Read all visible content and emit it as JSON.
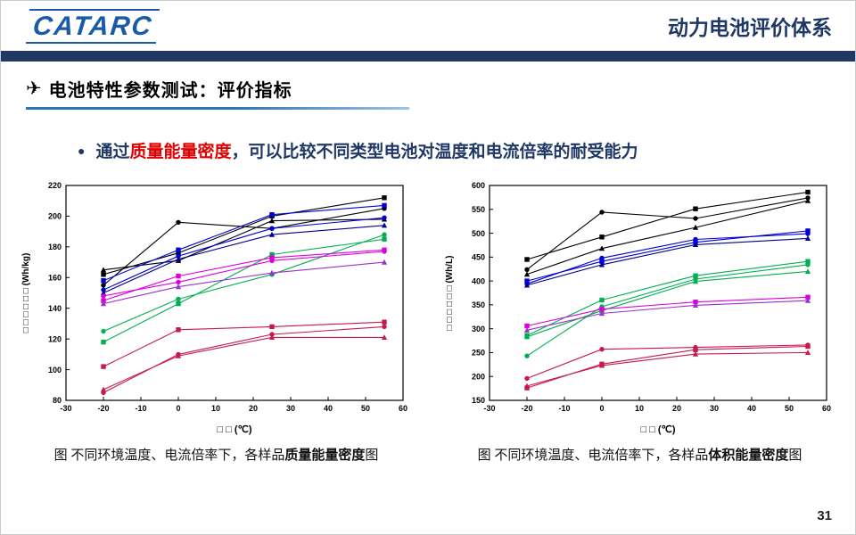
{
  "header": {
    "logo_text": "CATARC",
    "title": "动力电池评价体系"
  },
  "section": {
    "icon": "✈",
    "title": "电池特性参数测试：评价指标"
  },
  "bullet": {
    "prefix": "通过",
    "highlight": "质量能量密度",
    "suffix": "，可以比较不同类型电池对温度和电流倍率的耐受能力"
  },
  "captions": {
    "left": {
      "prefix": "图 不同环境温度、电流倍率下，各样品",
      "bold": "质量能量密度",
      "suffix": "图"
    },
    "right": {
      "prefix": "图 不同环境温度、电流倍率下，各样品",
      "bold": "体积能量密度",
      "suffix": "图"
    }
  },
  "page_number": "31",
  "colors": {
    "navy": "#1F3864",
    "accent-blue": "#2E74B5",
    "red": "#E00000",
    "logo-blue": "#1A5AA8"
  },
  "chart_data": [
    {
      "type": "line",
      "title": "",
      "xlabel": "□ □ (℃)",
      "ylabel": "□ □ □ □ □ □  (Wh/kg)",
      "x": [
        -20,
        0,
        25,
        55
      ],
      "xlim": [
        -30,
        60
      ],
      "ylim": [
        80,
        220
      ],
      "xticks": [
        -30,
        -20,
        -10,
        0,
        10,
        20,
        30,
        40,
        50,
        60
      ],
      "yticks": [
        80,
        100,
        120,
        140,
        160,
        180,
        200,
        220
      ],
      "legend": "none",
      "grid": false,
      "series": [
        {
          "name": "sample-black-square",
          "color": "#000000",
          "marker": "square",
          "values": [
            162,
            176,
            200,
            212
          ]
        },
        {
          "name": "sample-black-circle",
          "color": "#000000",
          "marker": "circle",
          "values": [
            155,
            196,
            192,
            205
          ]
        },
        {
          "name": "sample-black-triangle",
          "color": "#000000",
          "marker": "triangle",
          "values": [
            165,
            171,
            197,
            198
          ]
        },
        {
          "name": "sample-blue-square",
          "color": "#0000D8",
          "marker": "square",
          "values": [
            158,
            178,
            201,
            207
          ]
        },
        {
          "name": "sample-blue-circle",
          "color": "#0000D8",
          "marker": "circle",
          "values": [
            152,
            174,
            192,
            199
          ]
        },
        {
          "name": "sample-navy-triangle",
          "color": "#00008B",
          "marker": "triangle",
          "values": [
            150,
            172,
            188,
            194
          ]
        },
        {
          "name": "sample-green-circle",
          "color": "#00B050",
          "marker": "circle",
          "values": [
            125,
            146,
            162,
            188
          ]
        },
        {
          "name": "sample-green-square",
          "color": "#00B050",
          "marker": "square",
          "values": [
            118,
            143,
            175,
            185
          ]
        },
        {
          "name": "sample-magenta-square",
          "color": "#DD00DD",
          "marker": "square",
          "values": [
            145,
            161,
            173,
            178
          ]
        },
        {
          "name": "sample-magenta-circle",
          "color": "#DD00DD",
          "marker": "circle",
          "values": [
            148,
            157,
            171,
            177
          ]
        },
        {
          "name": "sample-purple-triangle",
          "color": "#9932CC",
          "marker": "triangle",
          "values": [
            143,
            154,
            163,
            170
          ]
        },
        {
          "name": "sample-crimson-square",
          "color": "#C8184C",
          "marker": "square",
          "values": [
            102,
            126,
            128,
            131
          ]
        },
        {
          "name": "sample-crimson-circle",
          "color": "#C8184C",
          "marker": "circle",
          "values": [
            85,
            110,
            123,
            128
          ]
        },
        {
          "name": "sample-crimson-triangle",
          "color": "#C8184C",
          "marker": "triangle",
          "values": [
            87,
            109,
            121,
            121
          ]
        }
      ]
    },
    {
      "type": "line",
      "title": "",
      "xlabel": "□ □ (℃)",
      "ylabel": "□ □ □ □ □ □  (Wh/L)",
      "x": [
        -20,
        0,
        25,
        55
      ],
      "xlim": [
        -30,
        60
      ],
      "ylim": [
        150,
        600
      ],
      "xticks": [
        -30,
        -20,
        -10,
        0,
        10,
        20,
        30,
        40,
        50,
        60
      ],
      "yticks": [
        150,
        200,
        250,
        300,
        350,
        400,
        450,
        500,
        550,
        600
      ],
      "legend": "none",
      "grid": false,
      "series": [
        {
          "name": "sample-black-square",
          "color": "#000000",
          "marker": "square",
          "values": [
            445,
            492,
            551,
            586
          ]
        },
        {
          "name": "sample-black-circle",
          "color": "#000000",
          "marker": "circle",
          "values": [
            424,
            544,
            531,
            574
          ]
        },
        {
          "name": "sample-black-triangle",
          "color": "#000000",
          "marker": "triangle",
          "values": [
            414,
            468,
            512,
            568
          ]
        },
        {
          "name": "sample-blue-square",
          "color": "#0000D8",
          "marker": "square",
          "values": [
            400,
            441,
            481,
            505
          ]
        },
        {
          "name": "sample-blue-circle",
          "color": "#0000D8",
          "marker": "circle",
          "values": [
            394,
            448,
            487,
            499
          ]
        },
        {
          "name": "sample-navy-triangle",
          "color": "#00008B",
          "marker": "triangle",
          "values": [
            391,
            434,
            476,
            489
          ]
        },
        {
          "name": "sample-green-square",
          "color": "#00B050",
          "marker": "square",
          "values": [
            286,
            360,
            411,
            441
          ]
        },
        {
          "name": "sample-green-circle",
          "color": "#00B050",
          "marker": "circle",
          "values": [
            243,
            346,
            404,
            434
          ]
        },
        {
          "name": "sample-green-triangle",
          "color": "#00B050",
          "marker": "triangle",
          "values": [
            283,
            338,
            399,
            420
          ]
        },
        {
          "name": "sample-magenta-square",
          "color": "#DD00DD",
          "marker": "square",
          "values": [
            306,
            341,
            356,
            366
          ]
        },
        {
          "name": "sample-purple-triangle",
          "color": "#9932CC",
          "marker": "triangle",
          "values": [
            297,
            332,
            349,
            359
          ]
        },
        {
          "name": "sample-crimson-circle",
          "color": "#C8184C",
          "marker": "circle",
          "values": [
            196,
            257,
            261,
            266
          ]
        },
        {
          "name": "sample-crimson-square",
          "color": "#C8184C",
          "marker": "square",
          "values": [
            176,
            226,
            256,
            263
          ]
        },
        {
          "name": "sample-crimson-triangle",
          "color": "#C8184C",
          "marker": "triangle",
          "values": [
            180,
            223,
            247,
            250
          ]
        }
      ]
    }
  ]
}
